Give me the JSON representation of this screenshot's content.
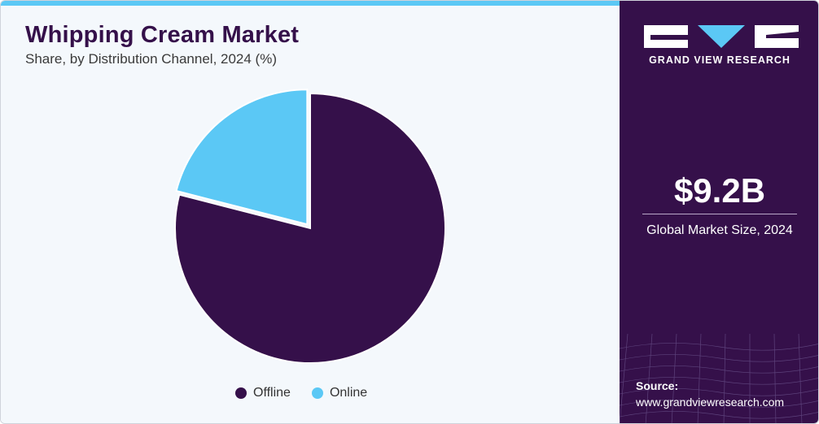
{
  "header": {
    "title": "Whipping Cream Market",
    "subtitle": "Share, by Distribution Channel, 2024 (%)"
  },
  "chart_data": {
    "type": "pie",
    "title": "Whipping Cream Market",
    "subtitle": "Share, by Distribution Channel, 2024 (%)",
    "categories": [
      "Offline",
      "Online"
    ],
    "values": [
      79,
      21
    ],
    "colors": [
      "#35104a",
      "#5bc8f5"
    ],
    "start_angle_deg": 0,
    "direction": "clockwise",
    "exploded": "Online",
    "legend_position": "bottom-center"
  },
  "legend": {
    "items": [
      {
        "label": "Offline",
        "color": "#35104a"
      },
      {
        "label": "Online",
        "color": "#5bc8f5"
      }
    ]
  },
  "sidebar": {
    "brand_name": "GRAND VIEW RESEARCH",
    "stat_value": "$9.2B",
    "stat_label": "Global Market Size, 2024",
    "source_label": "Source:",
    "source_url": "www.grandviewresearch.com"
  },
  "colors": {
    "brand_purple": "#35104a",
    "accent_blue": "#5bc8f5",
    "panel_background": "#f4f8fc"
  }
}
